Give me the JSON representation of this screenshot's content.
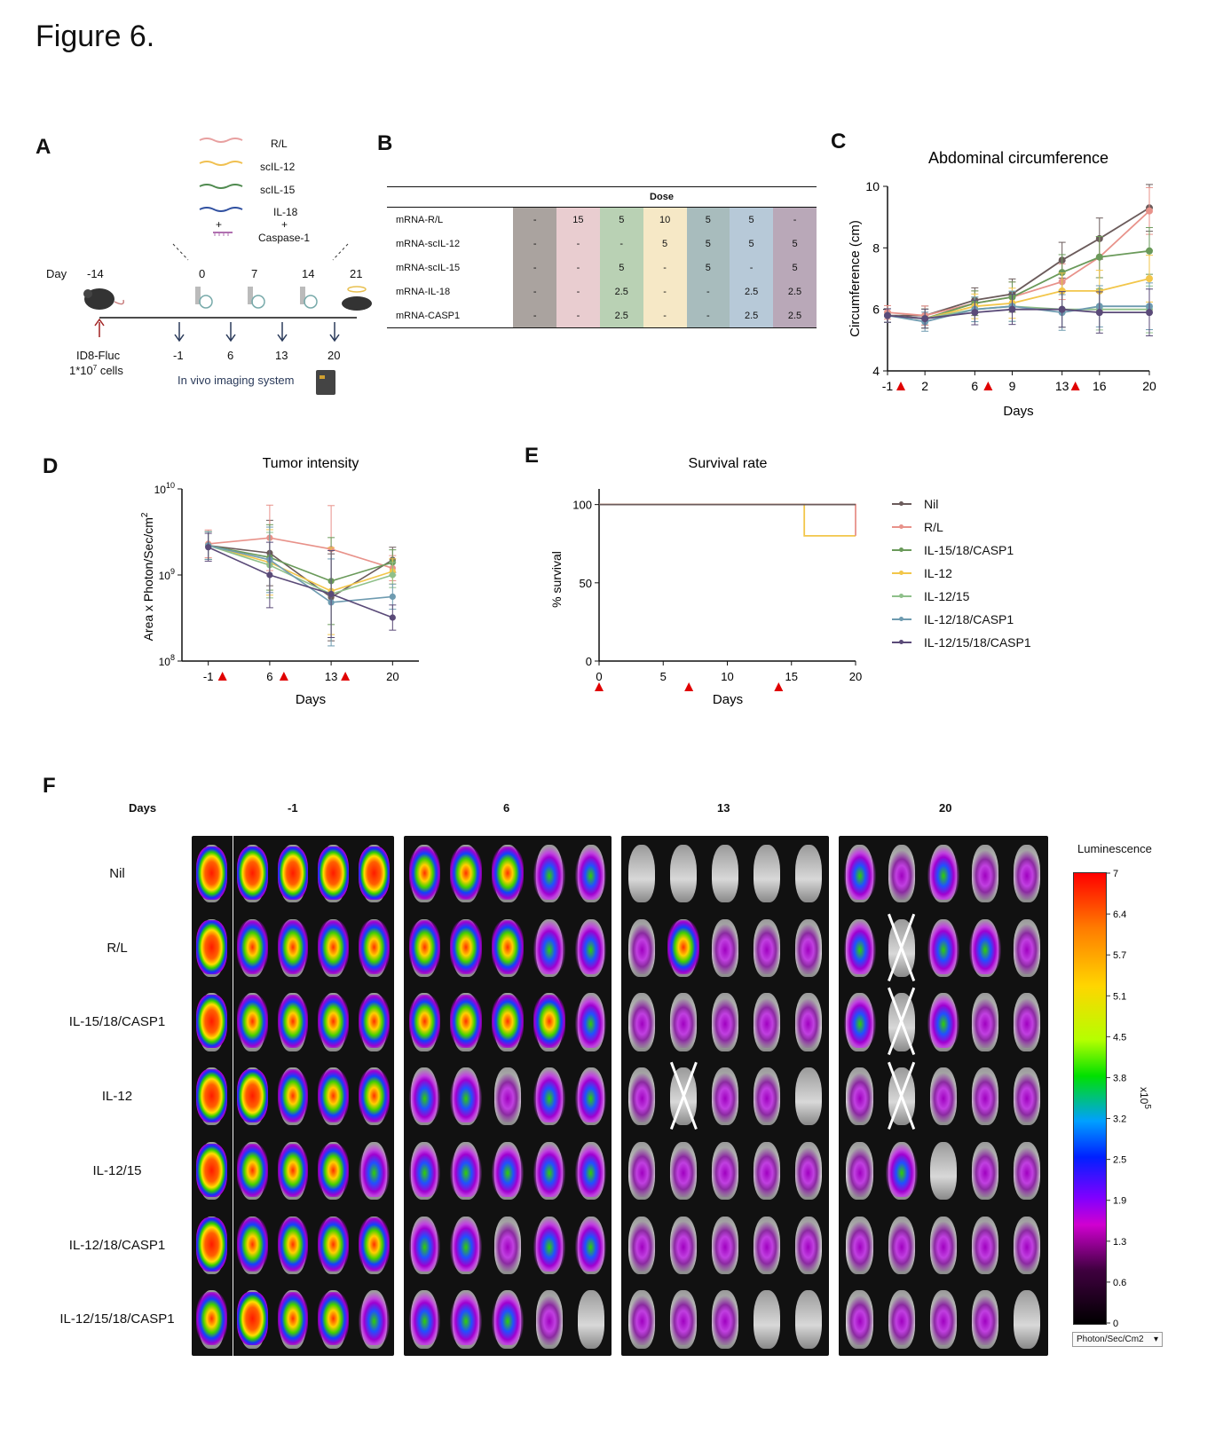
{
  "figure_title": "Figure 6.",
  "panels": {
    "A": {
      "letter": "A",
      "mrna_labels": [
        "R/L",
        "scIL-12",
        "scIL-15",
        "IL-18"
      ],
      "plus1": "+",
      "plus2": "+",
      "caspase": "Caspase-1",
      "day_label": "Day",
      "day_top": [
        "-14",
        "0",
        "7",
        "14",
        "21"
      ],
      "day_bottom": [
        "-1",
        "6",
        "13",
        "20"
      ],
      "cells_line1": "ID8-Fluc",
      "cells_line2": "1*10",
      "cells_sup": "7",
      "cells_suffix": " cells",
      "ivis": "In vivo imaging system",
      "colors": {
        "rl": "#e8a0a0",
        "il12": "#f0c050",
        "il15": "#4f8a4f",
        "il18": "#3050a0",
        "casp": "#b070b0"
      }
    },
    "B": {
      "letter": "B",
      "header": "Dose",
      "rows": [
        {
          "label": "mRNA-R/L",
          "values": [
            "-",
            "15",
            "5",
            "10",
            "5",
            "5",
            "-"
          ]
        },
        {
          "label": "mRNA-scIL-12",
          "values": [
            "-",
            "-",
            "-",
            "5",
            "5",
            "5",
            "5"
          ]
        },
        {
          "label": "mRNA-scIL-15",
          "values": [
            "-",
            "-",
            "5",
            "-",
            "5",
            "-",
            "5"
          ]
        },
        {
          "label": "mRNA-IL-18",
          "values": [
            "-",
            "-",
            "2.5",
            "-",
            "-",
            "2.5",
            "2.5"
          ]
        },
        {
          "label": "mRNA-CASP1",
          "values": [
            "-",
            "-",
            "2.5",
            "-",
            "-",
            "2.5",
            "2.5"
          ]
        }
      ],
      "col_colors": [
        "#aaa39f",
        "#e9cdd0",
        "#b9d1b4",
        "#f6e8c6",
        "#a8bcbd",
        "#b7c9d8",
        "#b9a8b8"
      ]
    },
    "C": {
      "letter": "C"
    },
    "D": {
      "letter": "D"
    },
    "E": {
      "letter": "E"
    },
    "F": {
      "letter": "F",
      "days_label": "Days",
      "day_cols": [
        "-1",
        "6",
        "13",
        "20"
      ],
      "rows": [
        "Nil",
        "R/L",
        "IL-15/18/CASP1",
        "IL-12",
        "IL-12/15",
        "IL-12/18/CASP1",
        "IL-12/15/18/CASP1"
      ],
      "colorbar_title": "Luminescence",
      "colorbar_ticks": [
        "7",
        "6.4",
        "5.7",
        "5.1",
        "4.5",
        "3.8",
        "3.2",
        "2.5",
        "1.9",
        "1.3",
        "0.6",
        "0"
      ],
      "colorbar_unit": "x10^5",
      "dropdown": "Photon/Sec/Cm2"
    }
  },
  "legend": {
    "entries": [
      {
        "name": "Nil",
        "color": "#6b5b5b"
      },
      {
        "name": "R/L",
        "color": "#e8928a"
      },
      {
        "name": "IL-15/18/CASP1",
        "color": "#6a9a5a"
      },
      {
        "name": "IL-12",
        "color": "#f2c64a"
      },
      {
        "name": "IL-12/15",
        "color": "#8fc08a"
      },
      {
        "name": "IL-12/18/CASP1",
        "color": "#6e9bb0"
      },
      {
        "name": "IL-12/15/18/CASP1",
        "color": "#5a4a78"
      }
    ]
  },
  "chart_data": [
    {
      "type": "line",
      "title": "Abdominal circumference",
      "xlabel": "Days",
      "ylabel": "Circumference (cm)",
      "x": [
        -1,
        2,
        6,
        9,
        13,
        16,
        20
      ],
      "xticks": [
        "-1",
        "2",
        "6",
        "9",
        "13",
        "16",
        "20"
      ],
      "ylim": [
        4,
        10
      ],
      "yticks": [
        "4",
        "6",
        "8",
        "10"
      ],
      "treatment_days": [
        -1,
        6,
        13
      ],
      "series": [
        {
          "name": "Nil",
          "color": "#6b5b5b",
          "values": [
            5.8,
            5.8,
            6.3,
            6.5,
            7.6,
            8.3,
            9.3
          ]
        },
        {
          "name": "R/L",
          "color": "#e8928a",
          "values": [
            5.9,
            5.8,
            6.2,
            6.4,
            6.9,
            7.7,
            9.2
          ]
        },
        {
          "name": "IL-15/18/CASP1",
          "color": "#6a9a5a",
          "values": [
            5.8,
            5.7,
            6.2,
            6.4,
            7.2,
            7.7,
            7.9
          ]
        },
        {
          "name": "IL-12",
          "color": "#f2c64a",
          "values": [
            5.8,
            5.7,
            6.1,
            6.2,
            6.6,
            6.6,
            7.0
          ]
        },
        {
          "name": "IL-12/15",
          "color": "#8fc08a",
          "values": [
            5.8,
            5.7,
            6.0,
            6.1,
            6.0,
            6.0,
            6.0
          ]
        },
        {
          "name": "IL-12/18/CASP1",
          "color": "#6e9bb0",
          "values": [
            5.8,
            5.6,
            6.0,
            6.1,
            5.9,
            6.1,
            6.1
          ]
        },
        {
          "name": "IL-12/15/18/CASP1",
          "color": "#5a4a78",
          "values": [
            5.8,
            5.7,
            5.9,
            6.0,
            6.0,
            5.9,
            5.9
          ]
        }
      ]
    },
    {
      "type": "line",
      "title": "Tumor intensity",
      "xlabel": "Days",
      "ylabel": "Area x Photon/Sec/cm2",
      "x": [
        -1,
        6,
        13,
        20
      ],
      "xticks": [
        "-1",
        "6",
        "13",
        "20"
      ],
      "yscale": "log",
      "ylim": [
        100000000,
        10000000000
      ],
      "yticks": [
        "10^8",
        "10^9",
        "10^10"
      ],
      "treatment_days": [
        -1,
        6,
        13
      ],
      "series": [
        {
          "name": "Nil",
          "color": "#6b5b5b",
          "values": [
            2200000000,
            1800000000,
            550000000,
            1500000000
          ]
        },
        {
          "name": "R/L",
          "color": "#e8928a",
          "values": [
            2300000000,
            2700000000,
            2000000000,
            1200000000
          ]
        },
        {
          "name": "IL-15/18/CASP1",
          "color": "#6a9a5a",
          "values": [
            2200000000,
            1600000000,
            850000000,
            1400000000
          ]
        },
        {
          "name": "IL-12",
          "color": "#f2c64a",
          "values": [
            2200000000,
            1400000000,
            650000000,
            1100000000
          ]
        },
        {
          "name": "IL-12/15",
          "color": "#8fc08a",
          "values": [
            2200000000,
            1300000000,
            600000000,
            1000000000
          ]
        },
        {
          "name": "IL-12/18/CASP1",
          "color": "#6e9bb0",
          "values": [
            2200000000,
            1500000000,
            480000000,
            560000000
          ]
        },
        {
          "name": "IL-12/15/18/CASP1",
          "color": "#5a4a78",
          "values": [
            2100000000,
            1000000000,
            600000000,
            320000000
          ]
        }
      ]
    },
    {
      "type": "line",
      "title": "Survival rate",
      "xlabel": "Days",
      "ylabel": "% survival",
      "xlim": [
        0,
        20
      ],
      "xticks": [
        "0",
        "5",
        "10",
        "15",
        "20"
      ],
      "ylim": [
        0,
        100
      ],
      "yticks": [
        "0",
        "50",
        "100"
      ],
      "treatment_days": [
        0,
        7,
        14
      ],
      "series": [
        {
          "name": "Nil",
          "color": "#6b5b5b",
          "steps": [
            [
              0,
              100
            ],
            [
              20,
              100
            ]
          ]
        },
        {
          "name": "R/L",
          "color": "#e8928a",
          "steps": [
            [
              0,
              100
            ],
            [
              20,
              100
            ],
            [
              20,
              80
            ]
          ]
        },
        {
          "name": "IL-12",
          "color": "#f2c64a",
          "steps": [
            [
              0,
              100
            ],
            [
              16,
              100
            ],
            [
              16,
              80
            ],
            [
              20,
              80
            ]
          ]
        }
      ]
    }
  ]
}
